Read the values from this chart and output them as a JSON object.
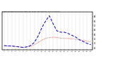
{
  "title": "Milwaukee Weather Outdoor Temp (vs) THSW Index per Hour (Last 24 Hours)",
  "hours": [
    0,
    1,
    2,
    3,
    4,
    5,
    6,
    7,
    8,
    9,
    10,
    11,
    12,
    13,
    14,
    15,
    16,
    17,
    18,
    19,
    20,
    21,
    22,
    23
  ],
  "temp": [
    25,
    24,
    24,
    23,
    22,
    21,
    22,
    23,
    27,
    32,
    37,
    41,
    43,
    44,
    43,
    42,
    41,
    41,
    40,
    39,
    38,
    37,
    35,
    33
  ],
  "thsw": [
    25,
    24,
    24,
    23,
    22,
    21,
    22,
    25,
    32,
    46,
    65,
    80,
    92,
    74,
    58,
    55,
    55,
    52,
    48,
    44,
    38,
    34,
    30,
    27
  ],
  "temp_color": "#cc0000",
  "thsw_color": "#0000cc",
  "bg_color": "#ffffff",
  "grid_color": "#888888",
  "ylim": [
    15,
    100
  ],
  "yticks_right": [
    20,
    30,
    40,
    50,
    60,
    70,
    80,
    90
  ],
  "figwidth": 1.6,
  "figheight": 0.87,
  "dpi": 100
}
